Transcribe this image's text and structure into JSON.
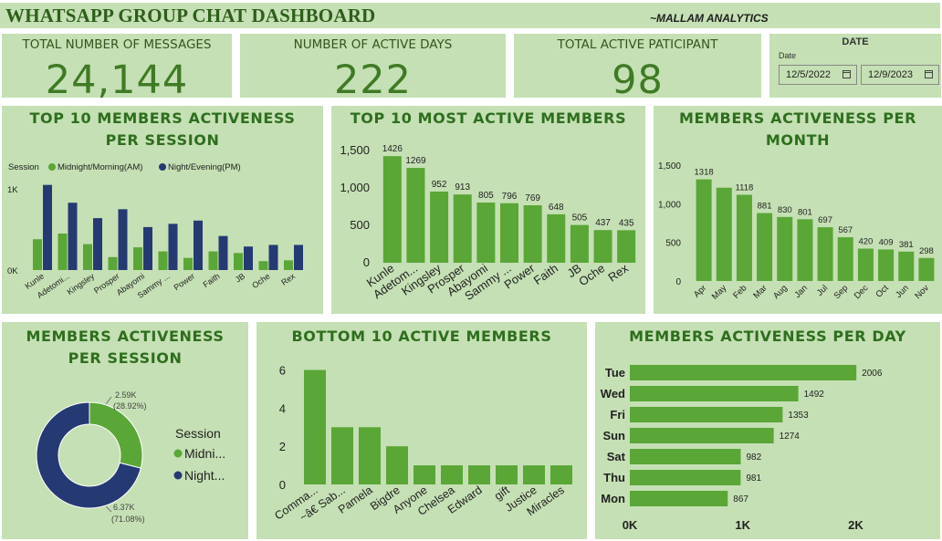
{
  "header": {
    "title": "WHATSAPP GROUP CHAT DASHBOARD",
    "brand": "~MALLAM ANALYTICS"
  },
  "kpis": [
    {
      "label": "TOTAL NUMBER OF MESSAGES",
      "value": "24,144"
    },
    {
      "label": "NUMBER OF ACTIVE DAYS",
      "value": "222"
    },
    {
      "label": "TOTAL ACTIVE PATICIPANT",
      "value": "98"
    }
  ],
  "date_filter": {
    "heading": "DATE",
    "label": "Date",
    "start": "12/5/2022",
    "end": "12/9/2023",
    "icon": "calendar-icon"
  },
  "colors": {
    "panel_bg": "#c5e0b4",
    "bar_green": "#5aa637",
    "am_green": "#5aa637",
    "pm_navy": "#253a73",
    "title_green": "#2e6e1e"
  },
  "chart_data": [
    {
      "type": "bar",
      "title": "TOP 10 MEMBERS ACTIVENESS PER SESSION",
      "legend_title": "Session",
      "categories": [
        "Kunle",
        "Adetomi...",
        "Kingsley",
        "Prosper",
        "Abayomi",
        "Sammy ...",
        "Power",
        "Faith",
        "JB",
        "Oche",
        "Rex"
      ],
      "series": [
        {
          "name": "Midnight/Morning(AM)",
          "values": [
            380,
            450,
            320,
            160,
            280,
            230,
            150,
            230,
            210,
            110,
            120
          ]
        },
        {
          "name": "Night/Evening(PM)",
          "values": [
            1050,
            830,
            640,
            750,
            530,
            570,
            610,
            420,
            290,
            310,
            310
          ]
        }
      ],
      "ytick_labels": [
        "0K",
        "1K"
      ],
      "ylim": [
        0,
        1350
      ],
      "legend": "top-left"
    },
    {
      "type": "bar",
      "title": "TOP 10 MOST ACTIVE MEMBERS",
      "categories": [
        "Kunle",
        "Adetom...",
        "Kingsley",
        "Prosper",
        "Abayomi",
        "Sammy ...",
        "Power",
        "Faith",
        "JB",
        "Oche",
        "Rex"
      ],
      "values": [
        1426,
        1269,
        952,
        913,
        805,
        796,
        769,
        648,
        505,
        437,
        435
      ],
      "ytick_labels": [
        "0",
        "500",
        "1,000",
        "1,500"
      ],
      "ylim": [
        0,
        1550
      ]
    },
    {
      "type": "bar",
      "title": "MEMBERS ACTIVENESS PER MONTH",
      "categories": [
        "Apr",
        "May",
        "Feb",
        "Mar",
        "Aug",
        "Jan",
        "Jul",
        "Sep",
        "Dec",
        "Oct",
        "Jun",
        "Nov"
      ],
      "values": [
        1318,
        1210,
        1118,
        881,
        830,
        801,
        697,
        567,
        420,
        409,
        381,
        298
      ],
      "data_labels": [
        "1318",
        "",
        "1118",
        "881",
        "830",
        "801",
        "697",
        "567",
        "420",
        "409",
        "381",
        "298"
      ],
      "ytick_labels": [
        "0",
        "500",
        "1,000",
        "1,500"
      ],
      "ylim": [
        0,
        1550
      ]
    },
    {
      "type": "pie",
      "title": "MEMBERS ACTIVENESS PER SESSION",
      "legend_title": "Session",
      "slices": [
        {
          "name": "Midni...",
          "value": 2590,
          "label": "2.59K",
          "percent": "(28.92%)"
        },
        {
          "name": "Night...",
          "value": 6370,
          "label": "6.37K",
          "percent": "(71.08%)"
        }
      ],
      "legend": "right"
    },
    {
      "type": "bar",
      "title": "BOTTOM 10 ACTIVE MEMBERS",
      "categories": [
        "Comma...",
        "~â€ Sab...",
        "Pamela",
        "Bigdre",
        "Anyone",
        "Chelsea",
        "Edward",
        "gift",
        "Justice",
        "Miracles"
      ],
      "values": [
        6,
        3,
        3,
        2,
        1,
        1,
        1,
        1,
        1,
        1
      ],
      "ytick_labels": [
        "0",
        "2",
        "4",
        "6"
      ],
      "ylim": [
        0,
        6.6
      ]
    },
    {
      "type": "bar",
      "orientation": "horizontal",
      "title": "MEMBERS ACTIVENESS PER DAY",
      "categories": [
        "Tue",
        "Wed",
        "Fri",
        "Sun",
        "Sat",
        "Thu",
        "Mon"
      ],
      "values": [
        2006,
        1492,
        1353,
        1274,
        982,
        981,
        867
      ],
      "xtick_labels": [
        "0K",
        "1K",
        "2K"
      ],
      "xlim": [
        0,
        2150
      ]
    }
  ]
}
